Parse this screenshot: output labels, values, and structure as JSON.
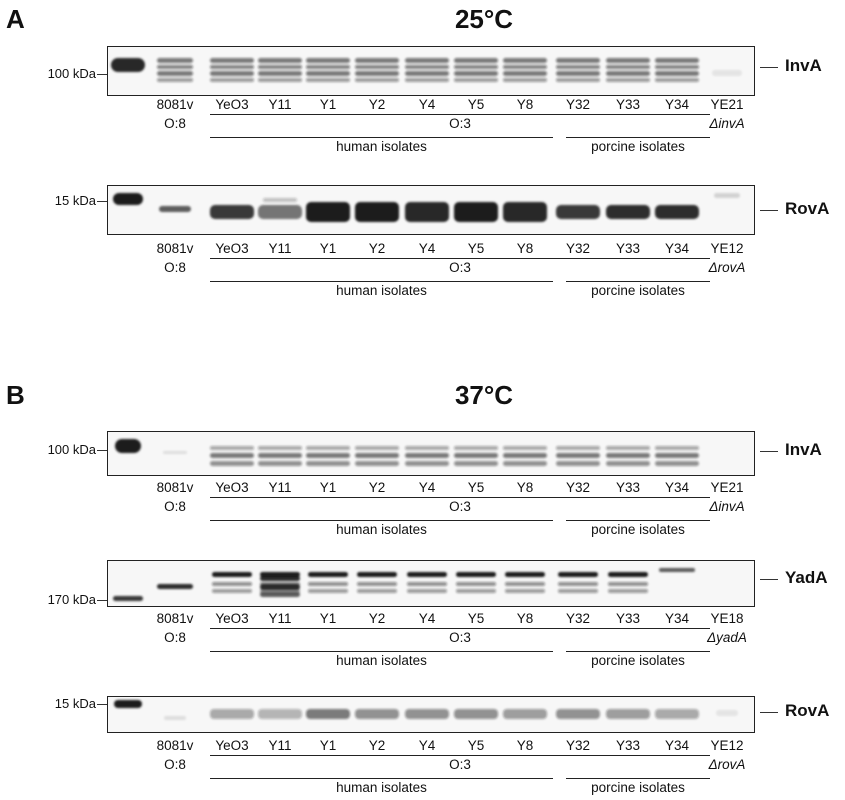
{
  "figure": {
    "panels": [
      {
        "letter": "A",
        "temperature": "25°C",
        "blots": [
          {
            "target": "InvA",
            "mw_marker": "100 kDa",
            "band_type": "invA_multi",
            "lanes": [
              "",
              "8081v",
              "YeO3",
              "Y11",
              "Y1",
              "Y2",
              "Y4",
              "Y5",
              "Y8",
              "Y32",
              "Y33",
              "Y34",
              "YE21"
            ],
            "serotype_8081": "O:8",
            "serotype_group": "O:3",
            "mutant_label": "ΔinvA",
            "human_label": "human isolates",
            "porcine_label": "porcine isolates"
          },
          {
            "target": "RovA",
            "mw_marker": "15 kDa",
            "band_type": "rovA_strong",
            "lanes": [
              "",
              "8081v",
              "YeO3",
              "Y11",
              "Y1",
              "Y2",
              "Y4",
              "Y5",
              "Y8",
              "Y32",
              "Y33",
              "Y34",
              "YE12"
            ],
            "serotype_8081": "O:8",
            "serotype_group": "O:3",
            "mutant_label": "ΔrovA",
            "human_label": "human isolates",
            "porcine_label": "porcine isolates"
          }
        ]
      },
      {
        "letter": "B",
        "temperature": "37°C",
        "blots": [
          {
            "target": "InvA",
            "mw_marker": "100 kDa",
            "band_type": "invA_multi_37",
            "lanes": [
              "",
              "8081v",
              "YeO3",
              "Y11",
              "Y1",
              "Y2",
              "Y4",
              "Y5",
              "Y8",
              "Y32",
              "Y33",
              "Y34",
              "YE21"
            ],
            "serotype_8081": "O:8",
            "serotype_group": "O:3",
            "mutant_label": "ΔinvA",
            "human_label": "human isolates",
            "porcine_label": "porcine isolates"
          },
          {
            "target": "YadA",
            "mw_marker": "170 kDa",
            "band_type": "yadA",
            "lanes": [
              "",
              "8081v",
              "YeO3",
              "Y11",
              "Y1",
              "Y2",
              "Y4",
              "Y5",
              "Y8",
              "Y32",
              "Y33",
              "Y34",
              "YE18"
            ],
            "serotype_8081": "O:8",
            "serotype_group": "O:3",
            "mutant_label": "ΔyadA",
            "human_label": "human isolates",
            "porcine_label": "porcine isolates"
          },
          {
            "target": "RovA",
            "mw_marker": "15 kDa",
            "band_type": "rovA_weak",
            "lanes": [
              "",
              "8081v",
              "YeO3",
              "Y11",
              "Y1",
              "Y2",
              "Y4",
              "Y5",
              "Y8",
              "Y32",
              "Y33",
              "Y34",
              "YE12"
            ],
            "serotype_8081": "O:8",
            "serotype_group": "O:3",
            "mutant_label": "ΔrovA",
            "human_label": "human isolates",
            "porcine_label": "porcine isolates"
          }
        ]
      }
    ]
  },
  "colors": {
    "band": "#1a1a1a",
    "background": "#ffffff",
    "text": "#111111"
  }
}
